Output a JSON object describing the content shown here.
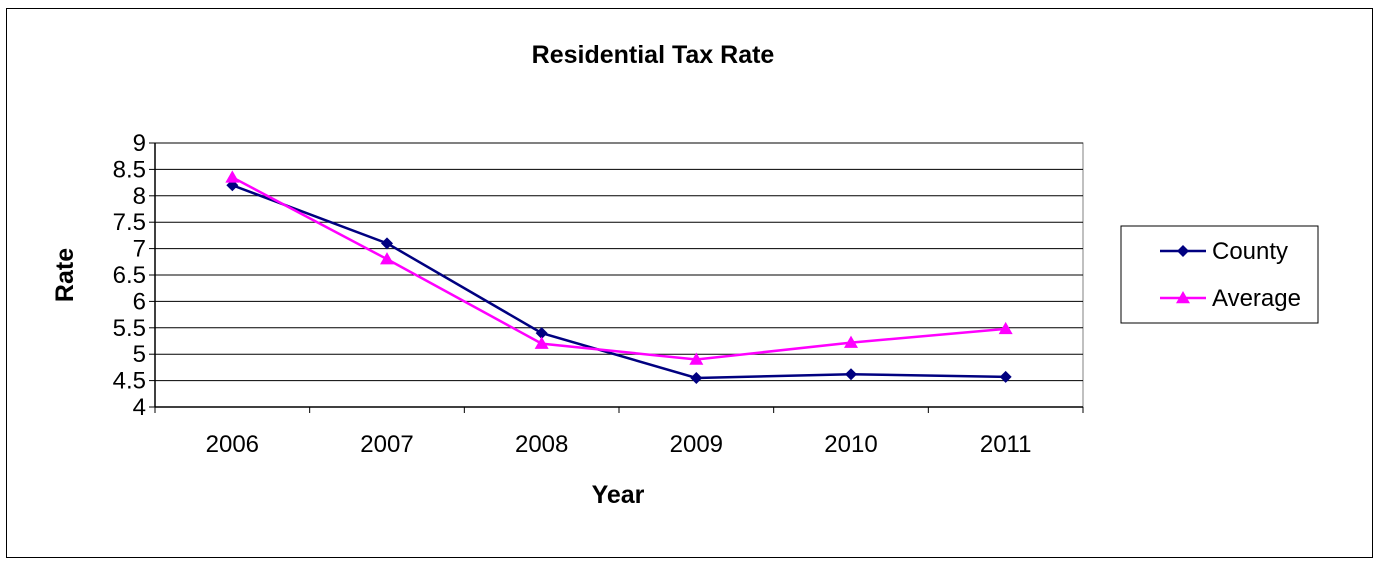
{
  "chart_data": {
    "type": "line",
    "title": "Residential Tax Rate",
    "xlabel": "Year",
    "ylabel": "Rate",
    "categories": [
      "2006",
      "2007",
      "2008",
      "2009",
      "2010",
      "2011"
    ],
    "ylim": [
      4,
      9
    ],
    "yticks": [
      "4",
      "4.5",
      "5",
      "5.5",
      "6",
      "6.5",
      "7",
      "7.5",
      "8",
      "8.5",
      "9"
    ],
    "grid": true,
    "legend_position": "right",
    "series": [
      {
        "name": "County",
        "values": [
          8.2,
          7.1,
          5.4,
          4.55,
          4.62,
          4.57
        ],
        "color": "#000080",
        "marker": "diamond"
      },
      {
        "name": "Average",
        "values": [
          8.35,
          6.8,
          5.2,
          4.9,
          5.22,
          5.48
        ],
        "color": "#ff00ff",
        "marker": "triangle"
      }
    ]
  }
}
